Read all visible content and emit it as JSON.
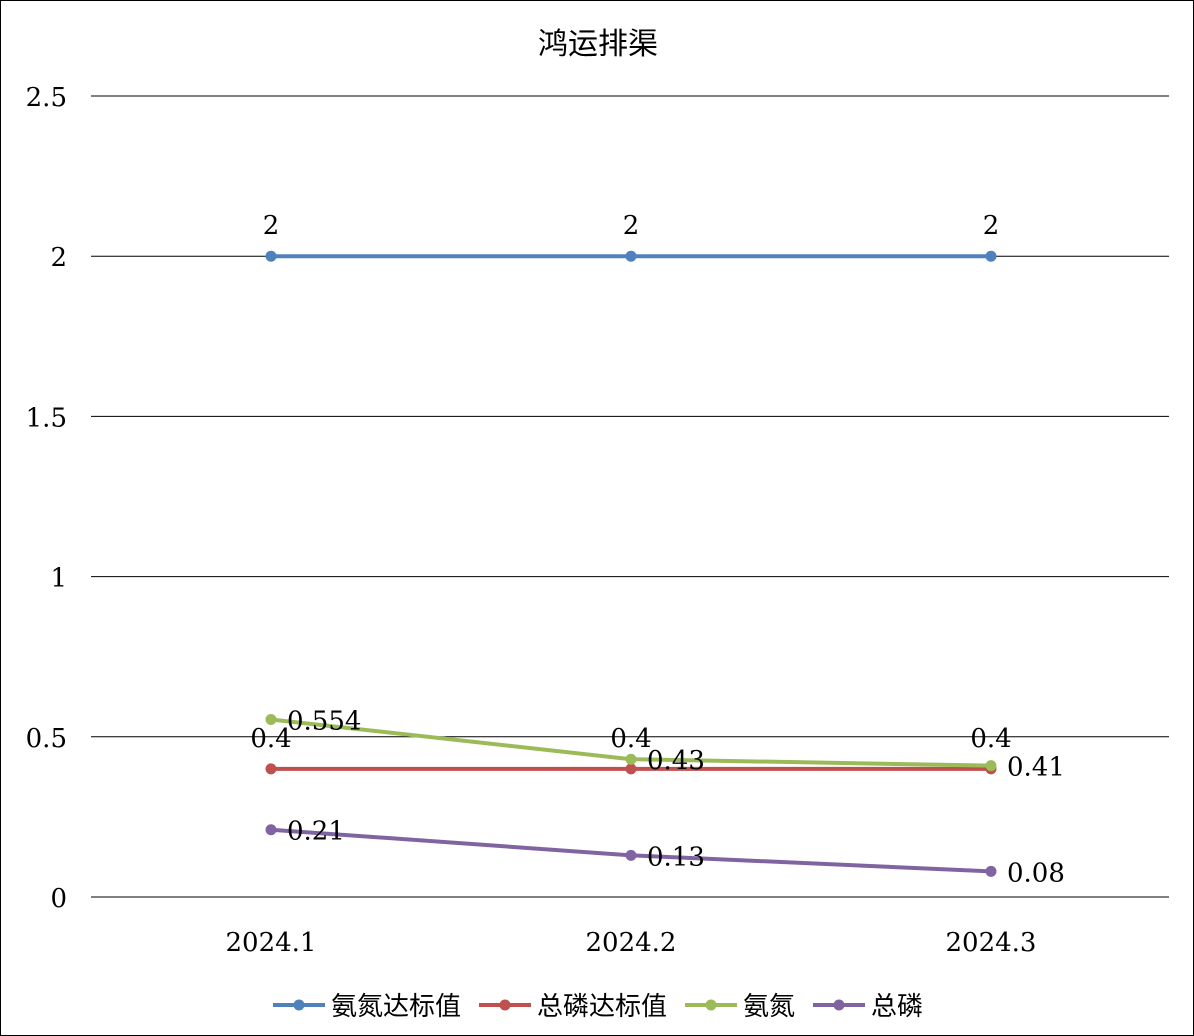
{
  "chart_data": {
    "type": "line",
    "title": "鸿运排渠",
    "categories": [
      "2024.1",
      "2024.2",
      "2024.3"
    ],
    "ylim": [
      0,
      2.5
    ],
    "yticks": [
      "0",
      "0.5",
      "1",
      "1.5",
      "2",
      "2.5"
    ],
    "ytick_values": [
      0,
      0.5,
      1,
      1.5,
      2,
      2.5
    ],
    "grid": true,
    "legend_position": "bottom",
    "series": [
      {
        "name": "氨氮达标值",
        "color": "#4F81BD",
        "values": [
          2,
          2,
          2
        ],
        "labels": [
          "2",
          "2",
          "2"
        ],
        "label_pos": "above"
      },
      {
        "name": "总磷达标值",
        "color": "#C0504D",
        "values": [
          0.4,
          0.4,
          0.4
        ],
        "labels": [
          "0.4",
          "0.4",
          "0.4"
        ],
        "label_pos": "above"
      },
      {
        "name": "氨氮",
        "color": "#9BBB59",
        "values": [
          0.554,
          0.43,
          0.41
        ],
        "labels": [
          "0.554",
          "0.43",
          "0.41"
        ],
        "label_pos": "right"
      },
      {
        "name": "总磷",
        "color": "#8064A2",
        "values": [
          0.21,
          0.13,
          0.08
        ],
        "labels": [
          "0.21",
          "0.13",
          "0.08"
        ],
        "label_pos": "right"
      }
    ]
  }
}
